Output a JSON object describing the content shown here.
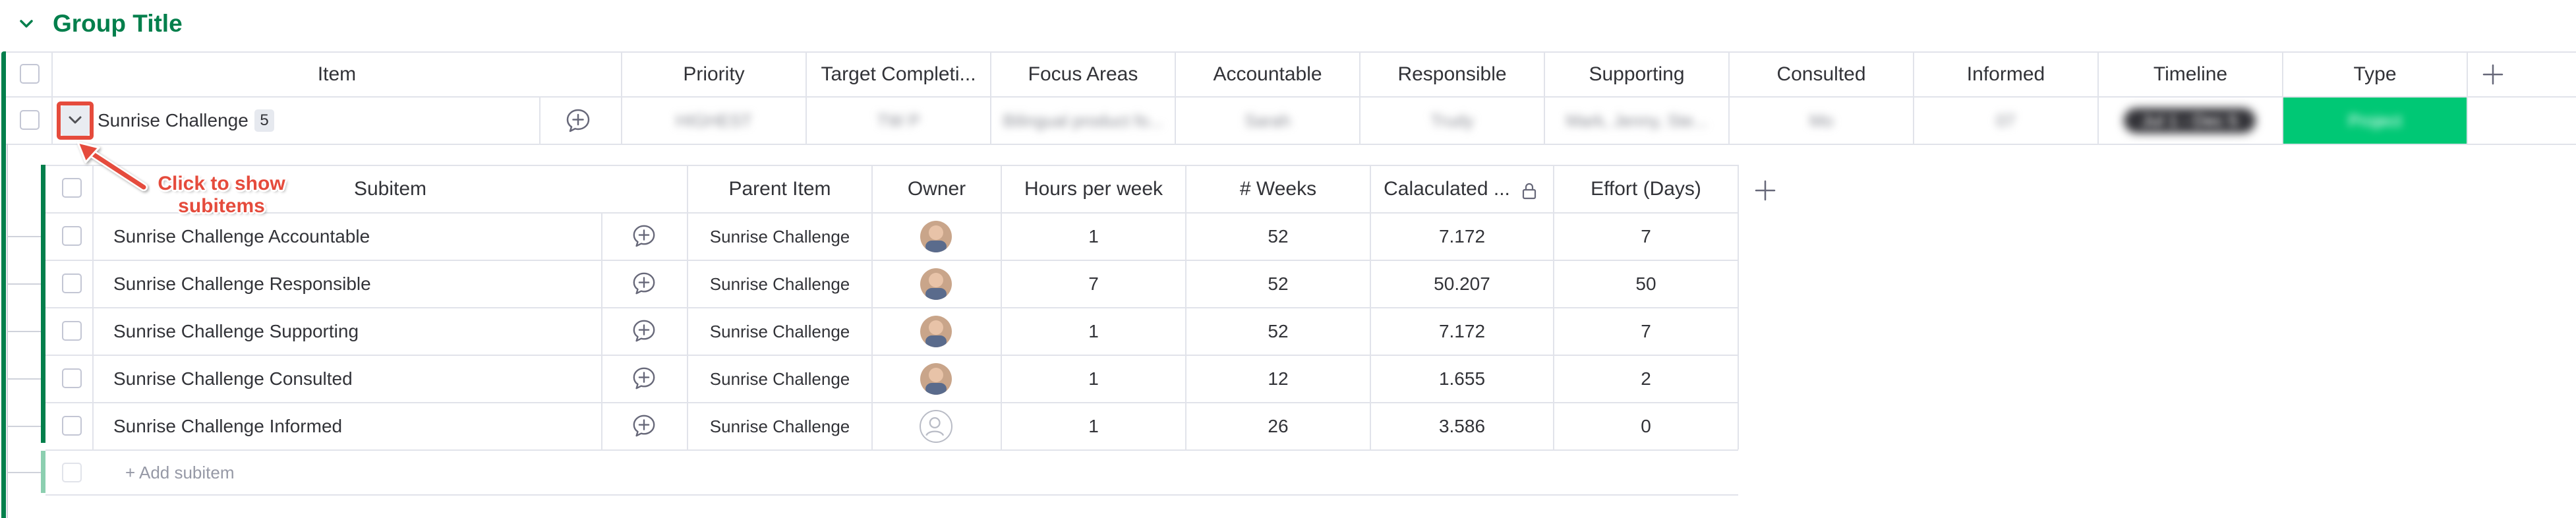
{
  "group": {
    "title": "Group Title",
    "color": "#037f4c"
  },
  "main_columns": [
    "Item",
    "Priority",
    "Target Completi...",
    "Focus Areas",
    "Accountable",
    "Responsible",
    "Supporting",
    "Consulted",
    "Informed",
    "Timeline",
    "Type"
  ],
  "item": {
    "name": "Sunrise Challenge",
    "subitem_count": "5",
    "priority": "HIGHEST",
    "target": "TW P",
    "focus": "Bilingual product fo...",
    "accountable": "Sarah",
    "responsible": "Trudy",
    "supporting": "Mark, Jenny, Ste...",
    "consulted": "Mo",
    "informed": "07",
    "timeline": "Jul 1 - Dec 5",
    "type": "Project",
    "type_color": "#00c875"
  },
  "callout": {
    "text": "Click to show subitems",
    "color": "#e54b3c"
  },
  "sub_columns": [
    "Subitem",
    "Parent Item",
    "Owner",
    "Hours per week",
    "# Weeks",
    "Calaculated ...",
    "Effort (Days)"
  ],
  "subitems": [
    {
      "name": "Sunrise Challenge Accountable",
      "parent": "Sunrise Challenge",
      "owner": "photo",
      "hours": "1",
      "weeks": "52",
      "calc": "7.172",
      "effort": "7"
    },
    {
      "name": "Sunrise Challenge Responsible",
      "parent": "Sunrise Challenge",
      "owner": "photo",
      "hours": "7",
      "weeks": "52",
      "calc": "50.207",
      "effort": "50"
    },
    {
      "name": "Sunrise Challenge Supporting",
      "parent": "Sunrise Challenge",
      "owner": "photo",
      "hours": "1",
      "weeks": "52",
      "calc": "7.172",
      "effort": "7"
    },
    {
      "name": "Sunrise Challenge Consulted",
      "parent": "Sunrise Challenge",
      "owner": "photo",
      "hours": "1",
      "weeks": "12",
      "calc": "1.655",
      "effort": "2"
    },
    {
      "name": "Sunrise Challenge Informed",
      "parent": "Sunrise Challenge",
      "owner": "empty",
      "hours": "1",
      "weeks": "26",
      "calc": "3.586",
      "effort": "0"
    }
  ],
  "add_subitem": "+ Add subitem",
  "icons": {
    "group_toggle": "chevron-down-icon",
    "expand": "chevron-down-icon",
    "update": "add-update-icon",
    "add_column": "plus-icon",
    "lock": "lock-icon"
  }
}
